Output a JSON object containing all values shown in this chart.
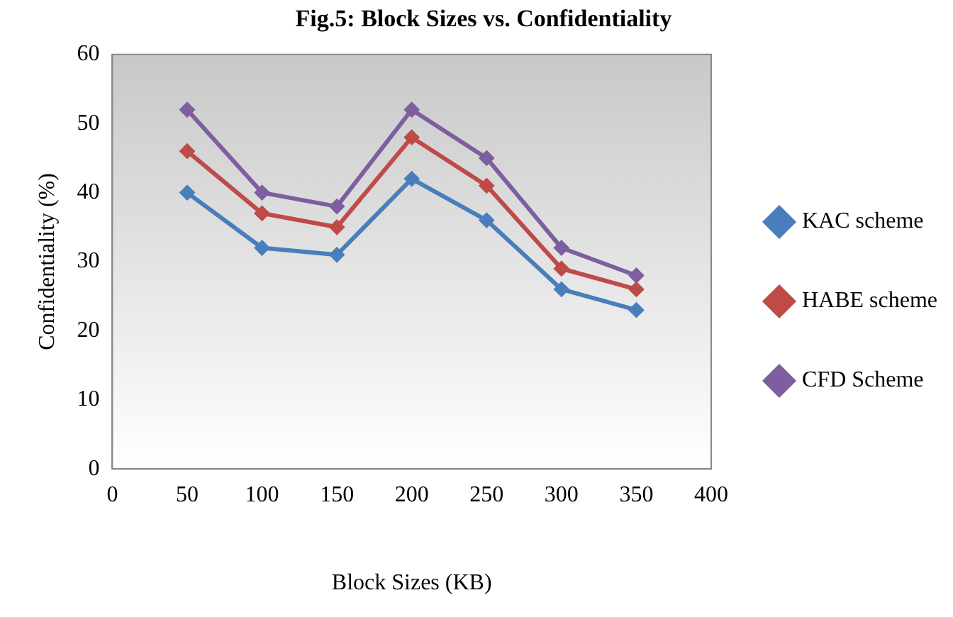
{
  "chart_data": {
    "type": "line",
    "title": "Fig.5: Block Sizes vs. Confidentiality",
    "xlabel": "Block Sizes (KB)",
    "ylabel": "Confidentiality (%)",
    "x": [
      50,
      100,
      150,
      200,
      250,
      300,
      350
    ],
    "series": [
      {
        "name": "KAC scheme",
        "color": "#4a7ebb",
        "values": [
          40,
          32,
          31,
          42,
          36,
          26,
          23
        ]
      },
      {
        "name": "HABE scheme",
        "color": "#be4b48",
        "values": [
          46,
          37,
          35,
          48,
          41,
          29,
          26
        ]
      },
      {
        "name": "CFD Scheme",
        "color": "#7d5fa0",
        "values": [
          52,
          40,
          38,
          52,
          45,
          32,
          28
        ]
      }
    ],
    "xlim": [
      0,
      400
    ],
    "xticks": [
      0,
      50,
      100,
      150,
      200,
      250,
      300,
      350,
      400
    ],
    "ylim": [
      0,
      60
    ],
    "yticks": [
      0,
      10,
      20,
      30,
      40,
      50,
      60
    ],
    "grid": false,
    "legend": "right",
    "marker": "diamond"
  }
}
